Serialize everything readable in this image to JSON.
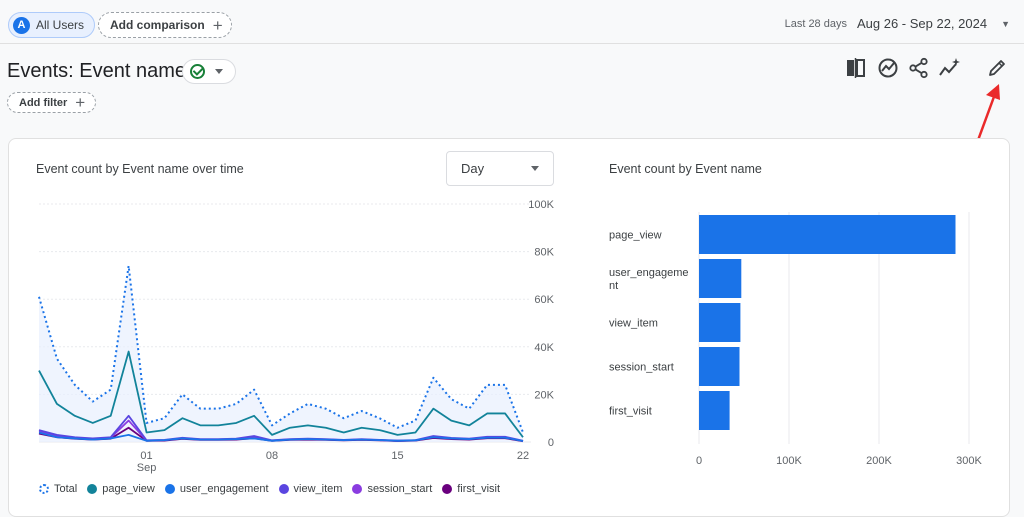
{
  "topbar": {
    "segment_avatar": "A",
    "segment_label": "All Users",
    "compare_label": "Add comparison",
    "date_caption": "Last 28 days",
    "date_range": "Aug 26 - Sep 22, 2024"
  },
  "header": {
    "title": "Events: Event name",
    "filter_label": "Add filter",
    "tools": [
      "compare-icon",
      "insights-icon",
      "share-icon",
      "trend-icon",
      "edit-icon"
    ]
  },
  "colors": {
    "accent": "#1a73e8",
    "total": "#1a73e8",
    "page_view": "#12839a",
    "user_engagement": "#1a73e8",
    "view_item": "#5a45e0",
    "session_start": "#8a3ce0",
    "first_visit": "#6a007e",
    "arrow": "#ea2a2a"
  },
  "line_chart": {
    "title": "Event count by Event name over time",
    "granularity": "Day",
    "chart_data": {
      "type": "line",
      "x": [
        "Aug 26",
        "Aug 27",
        "Aug 28",
        "Aug 29",
        "Aug 30",
        "Aug 31",
        "Sep 01",
        "Sep 02",
        "Sep 03",
        "Sep 04",
        "Sep 05",
        "Sep 06",
        "Sep 07",
        "Sep 08",
        "Sep 09",
        "Sep 10",
        "Sep 11",
        "Sep 12",
        "Sep 13",
        "Sep 14",
        "Sep 15",
        "Sep 16",
        "Sep 17",
        "Sep 18",
        "Sep 19",
        "Sep 20",
        "Sep 21",
        "Sep 22"
      ],
      "x_ticks": [
        {
          "index": 6,
          "label": "01",
          "sublabel": "Sep"
        },
        {
          "index": 13,
          "label": "08",
          "sublabel": ""
        },
        {
          "index": 20,
          "label": "15",
          "sublabel": ""
        },
        {
          "index": 27,
          "label": "22",
          "sublabel": ""
        }
      ],
      "ylim": [
        0,
        100000
      ],
      "y_ticks": [
        "0",
        "20K",
        "40K",
        "60K",
        "80K",
        "100K"
      ],
      "series": [
        {
          "name": "Total",
          "style": "dotted",
          "values": [
            61000,
            35000,
            24000,
            17000,
            22000,
            74000,
            8000,
            10000,
            20000,
            14000,
            14000,
            16000,
            22000,
            7000,
            12000,
            16000,
            14000,
            10000,
            13000,
            10000,
            6000,
            9000,
            27000,
            18000,
            14000,
            24000,
            24000,
            4000
          ]
        },
        {
          "name": "page_view",
          "style": "solid",
          "values": [
            30000,
            16000,
            11000,
            8000,
            11000,
            38000,
            4000,
            5000,
            10000,
            7000,
            7000,
            8000,
            11000,
            3000,
            6000,
            7000,
            6000,
            4000,
            6000,
            5000,
            3000,
            4000,
            14000,
            9000,
            7000,
            12000,
            12000,
            2000
          ]
        },
        {
          "name": "user_engagement",
          "style": "solid",
          "values": [
            4000,
            2000,
            1500,
            1000,
            1500,
            3000,
            500,
            800,
            1500,
            1000,
            1000,
            1200,
            1500,
            500,
            1000,
            1200,
            1000,
            800,
            1000,
            800,
            500,
            700,
            2000,
            1500,
            1200,
            1800,
            1800,
            400
          ]
        },
        {
          "name": "view_item",
          "style": "solid",
          "values": [
            5000,
            3000,
            2000,
            1500,
            2000,
            11000,
            700,
            900,
            1800,
            1200,
            1200,
            1400,
            2500,
            700,
            1200,
            1400,
            1200,
            900,
            1200,
            900,
            600,
            800,
            2500,
            1700,
            1400,
            2200,
            2200,
            500
          ]
        },
        {
          "name": "session_start",
          "style": "solid",
          "values": [
            4500,
            2500,
            1800,
            1200,
            1800,
            9000,
            600,
            800,
            1600,
            1100,
            1100,
            1300,
            2200,
            600,
            1100,
            1300,
            1100,
            800,
            1100,
            800,
            500,
            700,
            2200,
            1500,
            1300,
            2000,
            2000,
            400
          ]
        },
        {
          "name": "first_visit",
          "style": "solid",
          "values": [
            3500,
            2000,
            1400,
            1000,
            1400,
            6000,
            500,
            600,
            1300,
            900,
            900,
            1000,
            1600,
            500,
            900,
            1000,
            900,
            700,
            900,
            700,
            400,
            600,
            1700,
            1200,
            1000,
            1600,
            1600,
            300
          ]
        }
      ]
    }
  },
  "bar_chart": {
    "title": "Event count by Event name",
    "chart_data": {
      "type": "bar",
      "orientation": "horizontal",
      "categories": [
        "page_view",
        "user_engageme\nnt",
        "view_item",
        "session_start",
        "first_visit"
      ],
      "values": [
        285000,
        47000,
        46000,
        45000,
        34000
      ],
      "xlim": [
        0,
        300000
      ],
      "x_ticks": [
        "0",
        "100K",
        "200K",
        "300K"
      ]
    }
  }
}
